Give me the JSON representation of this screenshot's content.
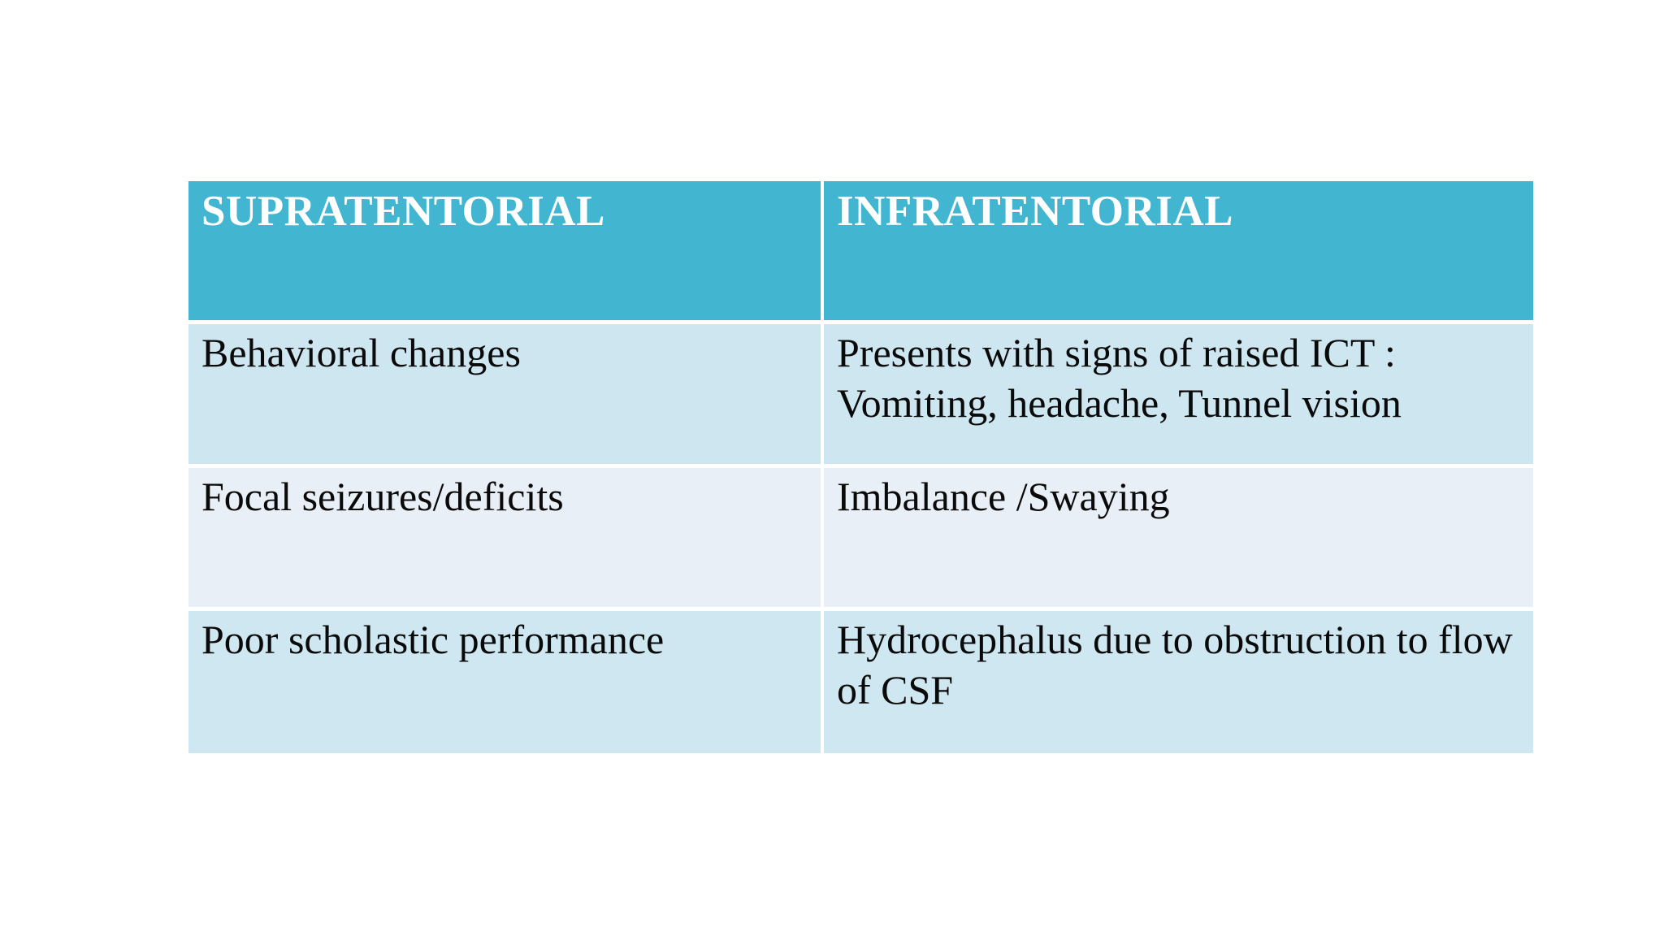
{
  "table": {
    "columns": [
      {
        "label": "SUPRATENTORIAL"
      },
      {
        "label": "INFRATENTORIAL"
      }
    ],
    "rows": [
      {
        "cells": [
          "Behavioral changes",
          "Presents with signs of raised ICT : Vomiting, headache, Tunnel vision"
        ]
      },
      {
        "cells": [
          "Focal seizures/deficits",
          "Imbalance /Swaying"
        ]
      },
      {
        "cells": [
          "Poor scholastic performance",
          "Hydrocephalus due to obstruction to flow of CSF"
        ]
      }
    ]
  },
  "colors": {
    "header_bg": "#42b6d1",
    "header_text": "#ffffff",
    "row_1_bg": "#cde6f0",
    "row_2_bg": "#e9eff6",
    "row_3_bg": "#cfe7f0",
    "body_text": "#0a0a0a",
    "page_bg": "#ffffff",
    "gutter": "#ffffff"
  }
}
